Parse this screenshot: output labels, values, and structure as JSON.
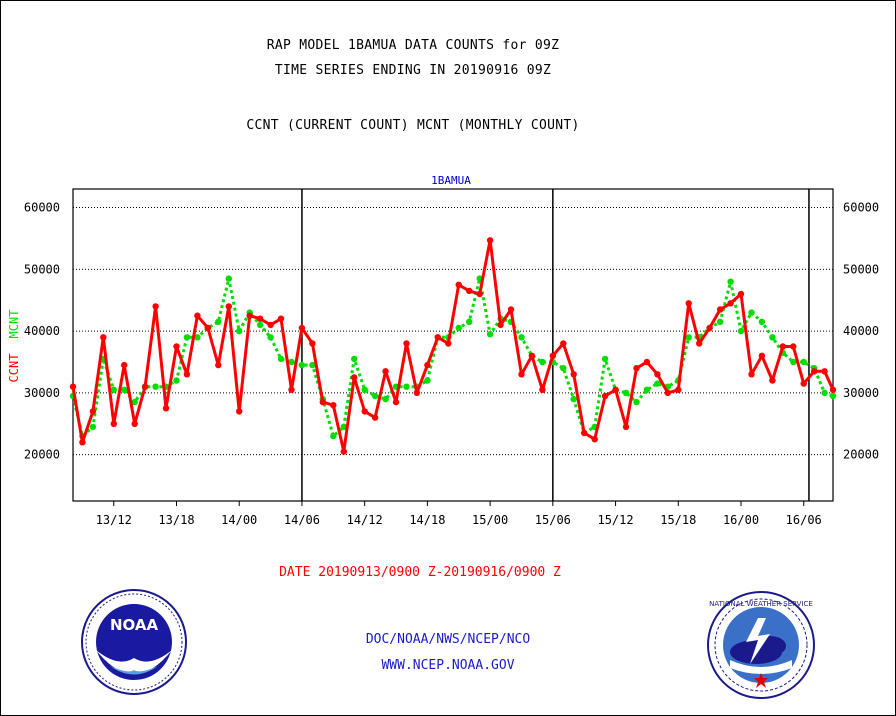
{
  "title_lines": [
    "RAP MODEL 1BAMUA DATA COUNTS for 09Z",
    "TIME SERIES ENDING IN 20190916 09Z",
    "CCNT (CURRENT COUNT) MCNT (MONTHLY COUNT)"
  ],
  "date_range": "DATE 20190913/0900 Z-20190916/0900 Z",
  "footer": {
    "line1": "DOC/NOAA/NWS/NCEP/NCO",
    "line2": "WWW.NCEP.NOAA.GOV"
  },
  "logos": {
    "left": {
      "icon": "noaa-logo-icon",
      "text": "NOAA"
    },
    "right": {
      "icon": "nws-logo-icon",
      "text": "NATIONAL WEATHER SERVICE"
    }
  },
  "colors": {
    "ccnt": "#ff0000",
    "mcnt": "#00dd00",
    "label": "#0000cc",
    "date": "#ff0000"
  },
  "chart_data": {
    "type": "line",
    "title": "1BAMUA",
    "ylabel_left": [
      "CCNT",
      "MCNT"
    ],
    "ylim": [
      12500,
      63000
    ],
    "yticks": [
      20000,
      30000,
      40000,
      50000,
      60000
    ],
    "ytick_labels": [
      "20000",
      "30000",
      "40000",
      "50000",
      "60000"
    ],
    "x_hours": [
      8.1,
      80.8
    ],
    "xticks": [
      {
        "h": 12,
        "label": "13/12"
      },
      {
        "h": 18,
        "label": "13/18"
      },
      {
        "h": 24,
        "label": "14/00"
      },
      {
        "h": 30,
        "label": "14/06"
      },
      {
        "h": 36,
        "label": "14/12"
      },
      {
        "h": 42,
        "label": "14/18"
      },
      {
        "h": 48,
        "label": "15/00"
      },
      {
        "h": 54,
        "label": "15/06"
      },
      {
        "h": 60,
        "label": "15/12"
      },
      {
        "h": 66,
        "label": "15/18"
      },
      {
        "h": 72,
        "label": "16/00"
      },
      {
        "h": 78,
        "label": "16/06"
      }
    ],
    "day_boundaries": [
      30,
      54,
      78.5
    ],
    "grid": "horizontal dotted",
    "series": [
      {
        "name": "CCNT",
        "hours": [
          8.1,
          9,
          10,
          11,
          12,
          13,
          14,
          15,
          16,
          17,
          18,
          19,
          20,
          21,
          22,
          23,
          24,
          25,
          26,
          27,
          28,
          29,
          30,
          31,
          32,
          33,
          34,
          35,
          36,
          37,
          38,
          39,
          40,
          41,
          42,
          43,
          44,
          45,
          46,
          47,
          48,
          49,
          50,
          51,
          52,
          53,
          54,
          55,
          56,
          57,
          58,
          59,
          60,
          61,
          62,
          63,
          64,
          65,
          66,
          67,
          68,
          69,
          70,
          71,
          72,
          73,
          74,
          75,
          76,
          77,
          78,
          79,
          80,
          80.8
        ],
        "values": [
          31000,
          22000,
          27000,
          39000,
          25000,
          34500,
          25000,
          31000,
          44000,
          27500,
          37500,
          33000,
          42500,
          40500,
          34500,
          44000,
          27000,
          42500,
          42000,
          41000,
          42000,
          30500,
          40500,
          38000,
          28500,
          28000,
          20500,
          32500,
          27000,
          26000,
          33500,
          28500,
          38000,
          30000,
          34500,
          39000,
          38000,
          47500,
          46500,
          46000,
          54700,
          41000,
          43500,
          33000,
          36000,
          30500,
          36000,
          38000,
          33000,
          23500,
          22500,
          29500,
          30500,
          24500,
          34000,
          35000,
          33000,
          30000,
          30500,
          44500,
          38000,
          40500,
          43500,
          44500,
          46000,
          33000,
          36000,
          32000,
          37500,
          37500,
          31500,
          33500,
          33500,
          30500
        ],
        "color": "#ff0000"
      },
      {
        "name": "MCNT",
        "hours": [
          8.1,
          9,
          10,
          11,
          12,
          13,
          14,
          15,
          16,
          17,
          18,
          19,
          20,
          21,
          22,
          23,
          24,
          25,
          26,
          27,
          28,
          29,
          30,
          31,
          32,
          33,
          34,
          35,
          36,
          37,
          38,
          39,
          40,
          41,
          42,
          43,
          44,
          45,
          46,
          47,
          48,
          49,
          50,
          51,
          52,
          53,
          54,
          55,
          56,
          57,
          58,
          59,
          60,
          61,
          62,
          63,
          64,
          65,
          66,
          67,
          68,
          69,
          70,
          71,
          72,
          73,
          74,
          75,
          76,
          77,
          78,
          79,
          80,
          80.8
        ],
        "values": [
          29500,
          23000,
          24500,
          35500,
          30500,
          30500,
          28500,
          31000,
          31000,
          31000,
          32000,
          39000,
          39000,
          40500,
          41500,
          48500,
          40000,
          43000,
          41000,
          39000,
          35500,
          35000,
          34500,
          34500,
          29000,
          23000,
          24500,
          35500,
          30500,
          29500,
          29000,
          31000,
          31000,
          31000,
          32000,
          39000,
          39000,
          40500,
          41500,
          48500,
          39500,
          42000,
          41500,
          39000,
          36000,
          35000,
          35000,
          34000,
          29000,
          23500,
          24500,
          35500,
          30500,
          30000,
          28500,
          30500,
          31500,
          31000,
          32000,
          39000,
          39000,
          40500,
          41500,
          48000,
          40000,
          43000,
          41500,
          39000,
          36500,
          35000,
          35000,
          34000,
          30000,
          29500
        ],
        "color": "#00dd00"
      }
    ]
  }
}
